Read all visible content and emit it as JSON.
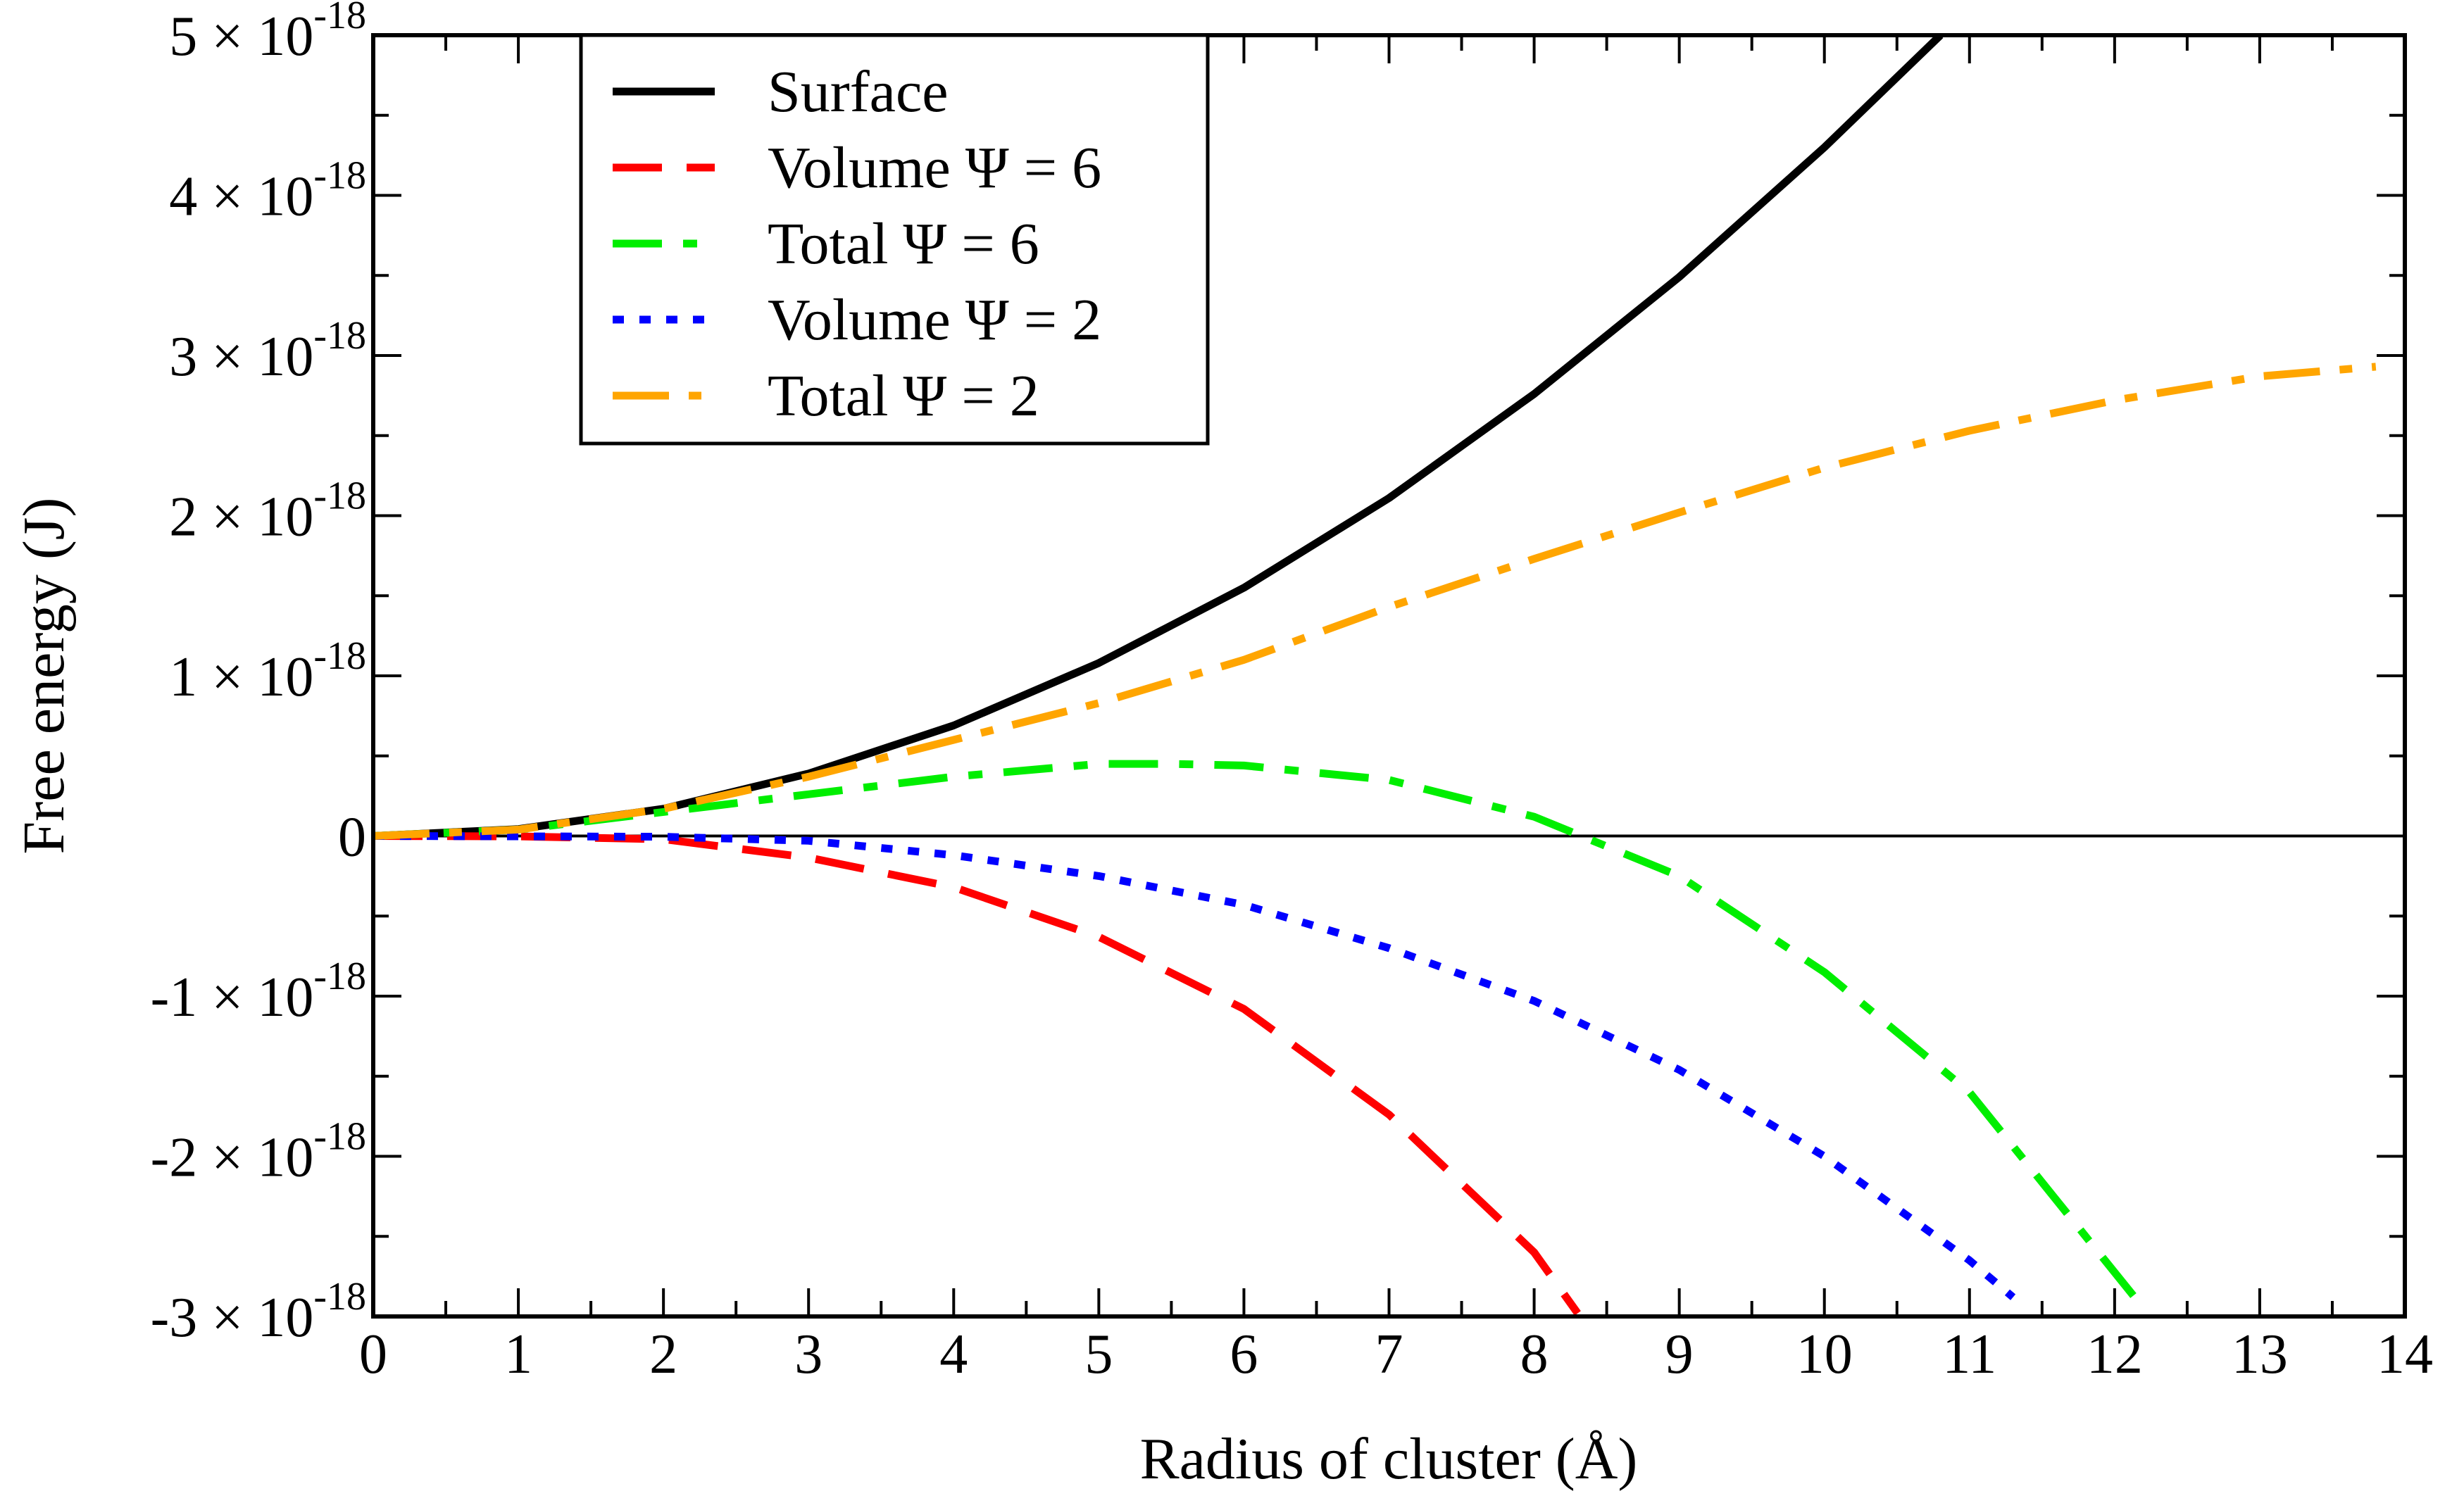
{
  "chart_data": {
    "type": "line",
    "xlabel": "Radius of cluster (Å)",
    "ylabel": "Free energy (J)",
    "xlim": [
      0,
      14
    ],
    "ylim": [
      -3e-18,
      5e-18
    ],
    "x_ticks": [
      {
        "value": 0,
        "label": "0"
      },
      {
        "value": 1,
        "label": "1"
      },
      {
        "value": 2,
        "label": "2"
      },
      {
        "value": 3,
        "label": "3"
      },
      {
        "value": 4,
        "label": "4"
      },
      {
        "value": 5,
        "label": "5"
      },
      {
        "value": 6,
        "label": "6"
      },
      {
        "value": 7,
        "label": "7"
      },
      {
        "value": 8,
        "label": "8"
      },
      {
        "value": 9,
        "label": "9"
      },
      {
        "value": 10,
        "label": "10"
      },
      {
        "value": 11,
        "label": "11"
      },
      {
        "value": 12,
        "label": "12"
      },
      {
        "value": 13,
        "label": "13"
      },
      {
        "value": 14,
        "label": "14"
      }
    ],
    "y_ticks": [
      {
        "value": -3e-18,
        "mant": "-3 × 10",
        "exp": "-18"
      },
      {
        "value": -2e-18,
        "mant": "-2 × 10",
        "exp": "-18"
      },
      {
        "value": -1e-18,
        "mant": "-1 × 10",
        "exp": "-18"
      },
      {
        "value": 0,
        "mant": "0",
        "exp": ""
      },
      {
        "value": 1e-18,
        "mant": "1 × 10",
        "exp": "-18"
      },
      {
        "value": 2e-18,
        "mant": "2 × 10",
        "exp": "-18"
      },
      {
        "value": 3e-18,
        "mant": "3 × 10",
        "exp": "-18"
      },
      {
        "value": 4e-18,
        "mant": "4 × 10",
        "exp": "-18"
      },
      {
        "value": 5e-18,
        "mant": "5 × 10",
        "exp": "-18"
      }
    ],
    "zero_line": true,
    "legend_position": "top-left",
    "series": [
      {
        "name": "Surface",
        "color": "#000000",
        "style": "solid",
        "x": [
          0,
          1,
          2,
          3,
          4,
          5,
          6,
          7,
          8,
          9,
          10,
          10.8
        ],
        "y": [
          0,
          4.3e-20,
          1.7e-19,
          3.9e-19,
          6.9e-19,
          1.08e-18,
          1.55e-18,
          2.11e-18,
          2.76e-18,
          3.49e-18,
          4.3e-18,
          5e-18
        ]
      },
      {
        "name": "Volume Ψ = 6",
        "color": "#ff0000",
        "style": "dashed",
        "x": [
          0,
          1,
          2,
          3,
          4,
          5,
          6,
          7,
          8,
          8.3
        ],
        "y": [
          0,
          -2.5e-21,
          -2e-20,
          -1.35e-19,
          -3.2e-19,
          -6.3e-19,
          -1.08e-18,
          -1.74e-18,
          -2.6e-18,
          -2.98e-18
        ]
      },
      {
        "name": "Total Ψ = 6",
        "color": "#00ee00",
        "style": "dash-dot",
        "x": [
          0,
          1,
          2,
          3,
          4,
          5,
          5.5,
          6,
          7,
          8,
          9,
          10,
          11,
          12.2
        ],
        "y": [
          0,
          4e-20,
          1.5e-19,
          2.6e-19,
          3.7e-19,
          4.5e-19,
          4.5e-19,
          4.4e-19,
          3.5e-19,
          1.2e-19,
          -2.5e-19,
          -8.5e-19,
          -1.6e-18,
          -2.95e-18
        ]
      },
      {
        "name": "Volume Ψ = 2",
        "color": "#0000ff",
        "style": "dotted",
        "x": [
          0,
          1,
          2,
          3,
          4,
          5,
          6,
          7,
          8,
          9,
          10,
          11,
          11.3
        ],
        "y": [
          0,
          -2e-21,
          -5e-21,
          -3e-20,
          -1.2e-19,
          -2.5e-19,
          -4.3e-19,
          -7e-19,
          -1.03e-18,
          -1.46e-18,
          -2e-18,
          -2.65e-18,
          -2.88e-18
        ]
      },
      {
        "name": "Total Ψ = 2",
        "color": "#ffa500",
        "style": "dash-dot-long",
        "x": [
          0,
          1,
          2,
          3,
          4,
          5,
          6,
          7,
          8,
          9,
          10,
          11,
          12,
          13,
          13.8
        ],
        "y": [
          0,
          4e-20,
          1.7e-19,
          3.7e-19,
          6e-19,
          8.3e-19,
          1.1e-18,
          1.43e-18,
          1.73e-18,
          2.02e-18,
          2.3e-18,
          2.53e-18,
          2.72e-18,
          2.87e-18,
          2.93e-18
        ]
      }
    ]
  }
}
